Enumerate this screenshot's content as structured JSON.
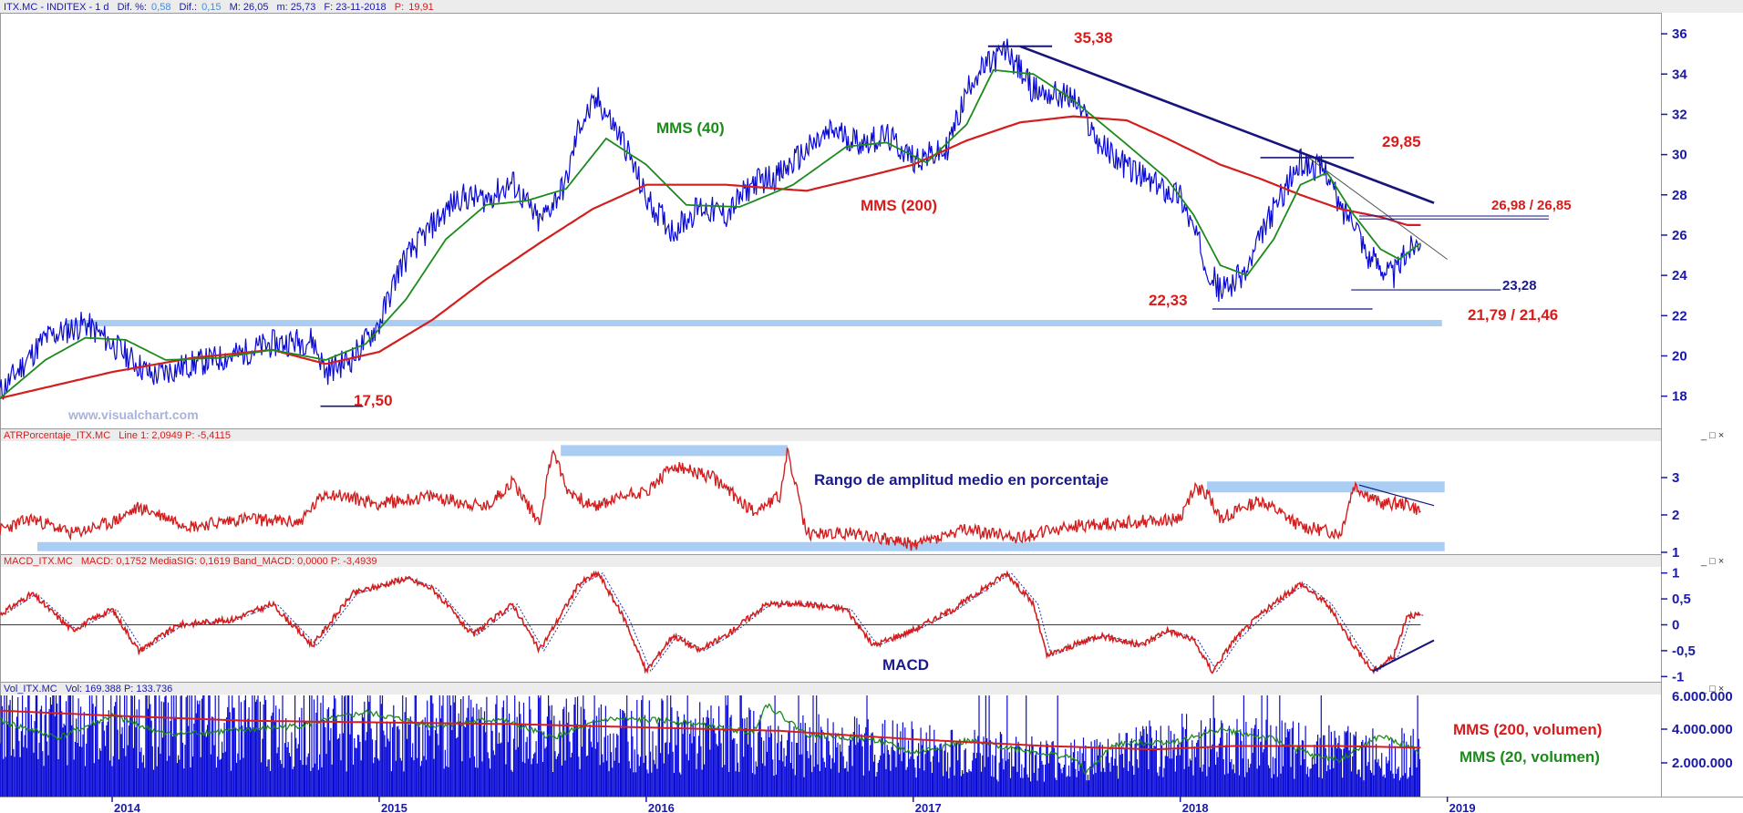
{
  "colors": {
    "price": "#0a0ad4",
    "mms40": "#1c8a1c",
    "mms200": "#d21e1e",
    "atr": "#d21e1e",
    "macd": "#d21e1e",
    "signal": "#2233aa",
    "volume": "#0b0bd6",
    "band": "#a9cdf3",
    "trend": "#15157a",
    "axis": "#1a1aa6"
  },
  "header": {
    "symbol": "ITX.MC - INDITEX - 1 d",
    "dif_pct_label": "Dif. %:",
    "dif_pct": "0,58",
    "dif_label": "Dif.:",
    "dif": "0,15",
    "max": "M: 26,05",
    "min": "m: 25,73",
    "date": "F: 23-11-2018",
    "p_label": "P:",
    "p": "19,91"
  },
  "watermark": "www.visualchart.com",
  "window_controls": "_ □ ×",
  "chart_data": [
    {
      "panel": "price",
      "type": "line",
      "y_ticks": [
        18,
        20,
        22,
        24,
        26,
        28,
        30,
        32,
        34,
        36
      ],
      "ylim": [
        16.4,
        37
      ],
      "series": [
        {
          "name": "MMS (40)"
        },
        {
          "name": "MMS (200)"
        }
      ],
      "price_path": [
        [
          2013.58,
          18.2
        ],
        [
          2013.75,
          20.9
        ],
        [
          2013.9,
          21.6
        ],
        [
          2014.0,
          20.6
        ],
        [
          2014.15,
          19.0
        ],
        [
          2014.3,
          19.6
        ],
        [
          2014.45,
          20.0
        ],
        [
          2014.6,
          20.6
        ],
        [
          2014.75,
          20.8
        ],
        [
          2014.8,
          19.2
        ],
        [
          2014.9,
          19.9
        ],
        [
          2015.0,
          21.6
        ],
        [
          2015.08,
          24.5
        ],
        [
          2015.2,
          26.5
        ],
        [
          2015.3,
          27.9
        ],
        [
          2015.4,
          27.8
        ],
        [
          2015.5,
          28.6
        ],
        [
          2015.6,
          26.6
        ],
        [
          2015.7,
          28.6
        ],
        [
          2015.75,
          31.5
        ],
        [
          2015.82,
          32.7
        ],
        [
          2015.92,
          30.5
        ],
        [
          2016.0,
          27.8
        ],
        [
          2016.1,
          26.2
        ],
        [
          2016.2,
          27.4
        ],
        [
          2016.3,
          27.0
        ],
        [
          2016.4,
          28.6
        ],
        [
          2016.5,
          29.0
        ],
        [
          2016.6,
          30.2
        ],
        [
          2016.7,
          31.2
        ],
        [
          2016.8,
          30.6
        ],
        [
          2016.9,
          30.9
        ],
        [
          2017.0,
          29.8
        ],
        [
          2017.12,
          30.1
        ],
        [
          2017.22,
          33.8
        ],
        [
          2017.35,
          35.2
        ],
        [
          2017.45,
          33.2
        ],
        [
          2017.6,
          32.8
        ],
        [
          2017.7,
          30.5
        ],
        [
          2017.8,
          29.4
        ],
        [
          2017.9,
          28.5
        ],
        [
          2018.0,
          28.0
        ],
        [
          2018.1,
          24.5
        ],
        [
          2018.15,
          23.2
        ],
        [
          2018.25,
          24.2
        ],
        [
          2018.32,
          26.5
        ],
        [
          2018.4,
          28.5
        ],
        [
          2018.45,
          29.6
        ],
        [
          2018.55,
          29.2
        ],
        [
          2018.6,
          27.2
        ],
        [
          2018.65,
          27.0
        ],
        [
          2018.7,
          25.0
        ],
        [
          2018.8,
          24.0
        ],
        [
          2018.85,
          25.2
        ],
        [
          2018.9,
          25.9
        ]
      ],
      "mms40_path": [
        [
          2013.58,
          17.9
        ],
        [
          2013.75,
          19.8
        ],
        [
          2013.9,
          20.9
        ],
        [
          2014.05,
          20.8
        ],
        [
          2014.2,
          19.8
        ],
        [
          2014.4,
          19.9
        ],
        [
          2014.6,
          20.3
        ],
        [
          2014.8,
          19.8
        ],
        [
          2014.95,
          20.6
        ],
        [
          2015.1,
          22.8
        ],
        [
          2015.25,
          25.8
        ],
        [
          2015.4,
          27.5
        ],
        [
          2015.55,
          27.7
        ],
        [
          2015.7,
          28.3
        ],
        [
          2015.85,
          30.8
        ],
        [
          2016.0,
          29.5
        ],
        [
          2016.15,
          27.5
        ],
        [
          2016.35,
          27.4
        ],
        [
          2016.55,
          28.5
        ],
        [
          2016.75,
          30.4
        ],
        [
          2016.9,
          30.6
        ],
        [
          2017.05,
          29.6
        ],
        [
          2017.2,
          31.5
        ],
        [
          2017.3,
          34.2
        ],
        [
          2017.45,
          34.0
        ],
        [
          2017.6,
          32.7
        ],
        [
          2017.8,
          30.5
        ],
        [
          2017.95,
          28.8
        ],
        [
          2018.05,
          27.0
        ],
        [
          2018.15,
          24.5
        ],
        [
          2018.25,
          24.0
        ],
        [
          2018.35,
          25.8
        ],
        [
          2018.45,
          28.5
        ],
        [
          2018.55,
          29.1
        ],
        [
          2018.65,
          27.0
        ],
        [
          2018.75,
          25.3
        ],
        [
          2018.82,
          24.8
        ],
        [
          2018.9,
          25.6
        ]
      ],
      "mms200_path": [
        [
          2013.58,
          17.9
        ],
        [
          2014.0,
          19.2
        ],
        [
          2014.3,
          19.9
        ],
        [
          2014.6,
          20.3
        ],
        [
          2014.8,
          19.6
        ],
        [
          2015.0,
          20.2
        ],
        [
          2015.2,
          21.8
        ],
        [
          2015.4,
          23.8
        ],
        [
          2015.6,
          25.6
        ],
        [
          2015.8,
          27.3
        ],
        [
          2016.0,
          28.5
        ],
        [
          2016.3,
          28.5
        ],
        [
          2016.6,
          28.2
        ],
        [
          2016.85,
          29.0
        ],
        [
          2017.0,
          29.5
        ],
        [
          2017.2,
          30.7
        ],
        [
          2017.4,
          31.6
        ],
        [
          2017.6,
          31.9
        ],
        [
          2017.8,
          31.7
        ],
        [
          2017.95,
          30.8
        ],
        [
          2018.15,
          29.5
        ],
        [
          2018.3,
          28.8
        ],
        [
          2018.45,
          28.0
        ],
        [
          2018.6,
          27.3
        ],
        [
          2018.75,
          26.9
        ],
        [
          2018.85,
          26.5
        ],
        [
          2018.9,
          26.5
        ]
      ],
      "annotations": [
        {
          "text": "35,38",
          "y": 35.38
        },
        {
          "text": "29,85",
          "y": 29.85
        },
        {
          "text": "26,98 / 26,85",
          "y": 26.9
        },
        {
          "text": "23,28",
          "y": 23.28
        },
        {
          "text": "22,33",
          "y": 22.33
        },
        {
          "text": "21,79 / 21,46",
          "y": 21.6
        },
        {
          "text": "17,50",
          "y": 17.5
        },
        {
          "text": "MMS (40)"
        },
        {
          "text": "MMS (200)"
        }
      ]
    },
    {
      "panel": "atr",
      "type": "line",
      "title": "ATRPorcentaje_ITX.MC",
      "info": "Line 1: 2,0949  P: -5,4115",
      "y_ticks": [
        1,
        2,
        3
      ],
      "ylim": [
        0.95,
        3.95
      ],
      "path": [
        [
          2013.58,
          1.6
        ],
        [
          2013.7,
          1.9
        ],
        [
          2013.85,
          1.5
        ],
        [
          2014.0,
          1.8
        ],
        [
          2014.1,
          2.2
        ],
        [
          2014.3,
          1.7
        ],
        [
          2014.5,
          1.9
        ],
        [
          2014.7,
          1.8
        ],
        [
          2014.8,
          2.6
        ],
        [
          2015.0,
          2.3
        ],
        [
          2015.2,
          2.5
        ],
        [
          2015.4,
          2.2
        ],
        [
          2015.5,
          2.9
        ],
        [
          2015.6,
          1.8
        ],
        [
          2015.65,
          3.8
        ],
        [
          2015.7,
          2.7
        ],
        [
          2015.8,
          2.2
        ],
        [
          2015.95,
          2.6
        ],
        [
          2016.0,
          2.6
        ],
        [
          2016.1,
          3.3
        ],
        [
          2016.25,
          3.0
        ],
        [
          2016.4,
          2.1
        ],
        [
          2016.5,
          2.5
        ],
        [
          2016.53,
          3.7
        ],
        [
          2016.6,
          1.5
        ],
        [
          2016.8,
          1.5
        ],
        [
          2017.0,
          1.2
        ],
        [
          2017.2,
          1.6
        ],
        [
          2017.4,
          1.4
        ],
        [
          2017.6,
          1.7
        ],
        [
          2017.8,
          1.8
        ],
        [
          2018.0,
          1.9
        ],
        [
          2018.05,
          2.7
        ],
        [
          2018.1,
          2.6
        ],
        [
          2018.15,
          1.9
        ],
        [
          2018.3,
          2.4
        ],
        [
          2018.45,
          1.7
        ],
        [
          2018.6,
          1.5
        ],
        [
          2018.65,
          2.8
        ],
        [
          2018.75,
          2.3
        ],
        [
          2018.85,
          2.3
        ],
        [
          2018.9,
          2.1
        ]
      ],
      "annotation": "Rango de amplitud medio en porcentaje"
    },
    {
      "panel": "macd",
      "type": "line",
      "title": "MACD_ITX.MC",
      "info": "MACD: 0,1752  MediaSIG: 0,1619  Band_MACD: 0,0000  P: -3,4939",
      "y_ticks": [
        -1,
        -0.5,
        0,
        0.5,
        1
      ],
      "y_tick_labels": [
        "-1",
        "-0,5",
        "0",
        "0,5",
        "1"
      ],
      "ylim": [
        -1.1,
        1.1
      ],
      "path": [
        [
          2013.58,
          0.2
        ],
        [
          2013.7,
          0.6
        ],
        [
          2013.85,
          -0.1
        ],
        [
          2014.0,
          0.3
        ],
        [
          2014.1,
          -0.5
        ],
        [
          2014.25,
          0.0
        ],
        [
          2014.45,
          0.1
        ],
        [
          2014.6,
          0.4
        ],
        [
          2014.75,
          -0.4
        ],
        [
          2014.9,
          0.6
        ],
        [
          2015.1,
          0.9
        ],
        [
          2015.2,
          0.7
        ],
        [
          2015.35,
          -0.2
        ],
        [
          2015.5,
          0.4
        ],
        [
          2015.6,
          -0.5
        ],
        [
          2015.75,
          0.8
        ],
        [
          2015.82,
          1.0
        ],
        [
          2015.92,
          0.1
        ],
        [
          2016.0,
          -0.9
        ],
        [
          2016.1,
          -0.2
        ],
        [
          2016.2,
          -0.5
        ],
        [
          2016.3,
          -0.2
        ],
        [
          2016.45,
          0.4
        ],
        [
          2016.6,
          0.4
        ],
        [
          2016.75,
          0.3
        ],
        [
          2016.85,
          -0.4
        ],
        [
          2017.0,
          -0.1
        ],
        [
          2017.15,
          0.3
        ],
        [
          2017.35,
          1.0
        ],
        [
          2017.45,
          0.4
        ],
        [
          2017.5,
          -0.6
        ],
        [
          2017.7,
          -0.2
        ],
        [
          2017.85,
          -0.4
        ],
        [
          2017.95,
          -0.1
        ],
        [
          2018.05,
          -0.3
        ],
        [
          2018.12,
          -0.9
        ],
        [
          2018.2,
          -0.3
        ],
        [
          2018.3,
          0.2
        ],
        [
          2018.45,
          0.8
        ],
        [
          2018.55,
          0.4
        ],
        [
          2018.65,
          -0.4
        ],
        [
          2018.72,
          -0.9
        ],
        [
          2018.8,
          -0.6
        ],
        [
          2018.85,
          0.2
        ],
        [
          2018.9,
          0.18
        ]
      ],
      "annotation": "MACD"
    },
    {
      "panel": "volume",
      "type": "bar",
      "title": "Vol_ITX.MC",
      "info": "Vol: 169.388  P: 133.736",
      "y_ticks": [
        2000000,
        4000000
      ],
      "y_tick_labels": [
        "2.000.000",
        "4.000.000"
      ],
      "ylim": [
        0,
        6000000
      ],
      "series": [
        {
          "name": "MMS (200, volumen)"
        },
        {
          "name": "MMS (20, volumen)"
        }
      ],
      "mms200_path": [
        [
          2013.58,
          5.1
        ],
        [
          2014.0,
          4.8
        ],
        [
          2014.5,
          4.5
        ],
        [
          2015.0,
          4.4
        ],
        [
          2015.5,
          4.3
        ],
        [
          2016.0,
          4.1
        ],
        [
          2016.5,
          3.9
        ],
        [
          2017.0,
          3.4
        ],
        [
          2017.5,
          3.0
        ],
        [
          2017.9,
          2.8
        ],
        [
          2018.2,
          3.0
        ],
        [
          2018.6,
          3.0
        ],
        [
          2018.9,
          2.9
        ]
      ],
      "mms20_path": [
        [
          2013.58,
          4.5
        ],
        [
          2013.8,
          3.5
        ],
        [
          2014.0,
          4.8
        ],
        [
          2014.2,
          3.7
        ],
        [
          2014.45,
          3.9
        ],
        [
          2014.7,
          4.2
        ],
        [
          2014.95,
          5.0
        ],
        [
          2015.2,
          4.2
        ],
        [
          2015.45,
          4.6
        ],
        [
          2015.65,
          3.5
        ],
        [
          2015.85,
          4.6
        ],
        [
          2016.1,
          4.5
        ],
        [
          2016.4,
          3.8
        ],
        [
          2016.45,
          5.5
        ],
        [
          2016.6,
          3.7
        ],
        [
          2016.85,
          3.4
        ],
        [
          2017.0,
          2.6
        ],
        [
          2017.2,
          3.3
        ],
        [
          2017.4,
          2.8
        ],
        [
          2017.6,
          2.3
        ],
        [
          2017.65,
          1.4
        ],
        [
          2017.75,
          3.1
        ],
        [
          2018.0,
          3.3
        ],
        [
          2018.15,
          4.0
        ],
        [
          2018.35,
          3.4
        ],
        [
          2018.5,
          2.4
        ],
        [
          2018.6,
          2.2
        ],
        [
          2018.75,
          3.6
        ],
        [
          2018.9,
          2.7
        ]
      ]
    }
  ],
  "x_axis": {
    "labels": [
      "2014",
      "2015",
      "2016",
      "2017",
      "2018",
      "2019"
    ],
    "positions": [
      2014,
      2015,
      2016,
      2017,
      2018,
      2019
    ],
    "domain": [
      2013.58,
      2019.8
    ]
  }
}
